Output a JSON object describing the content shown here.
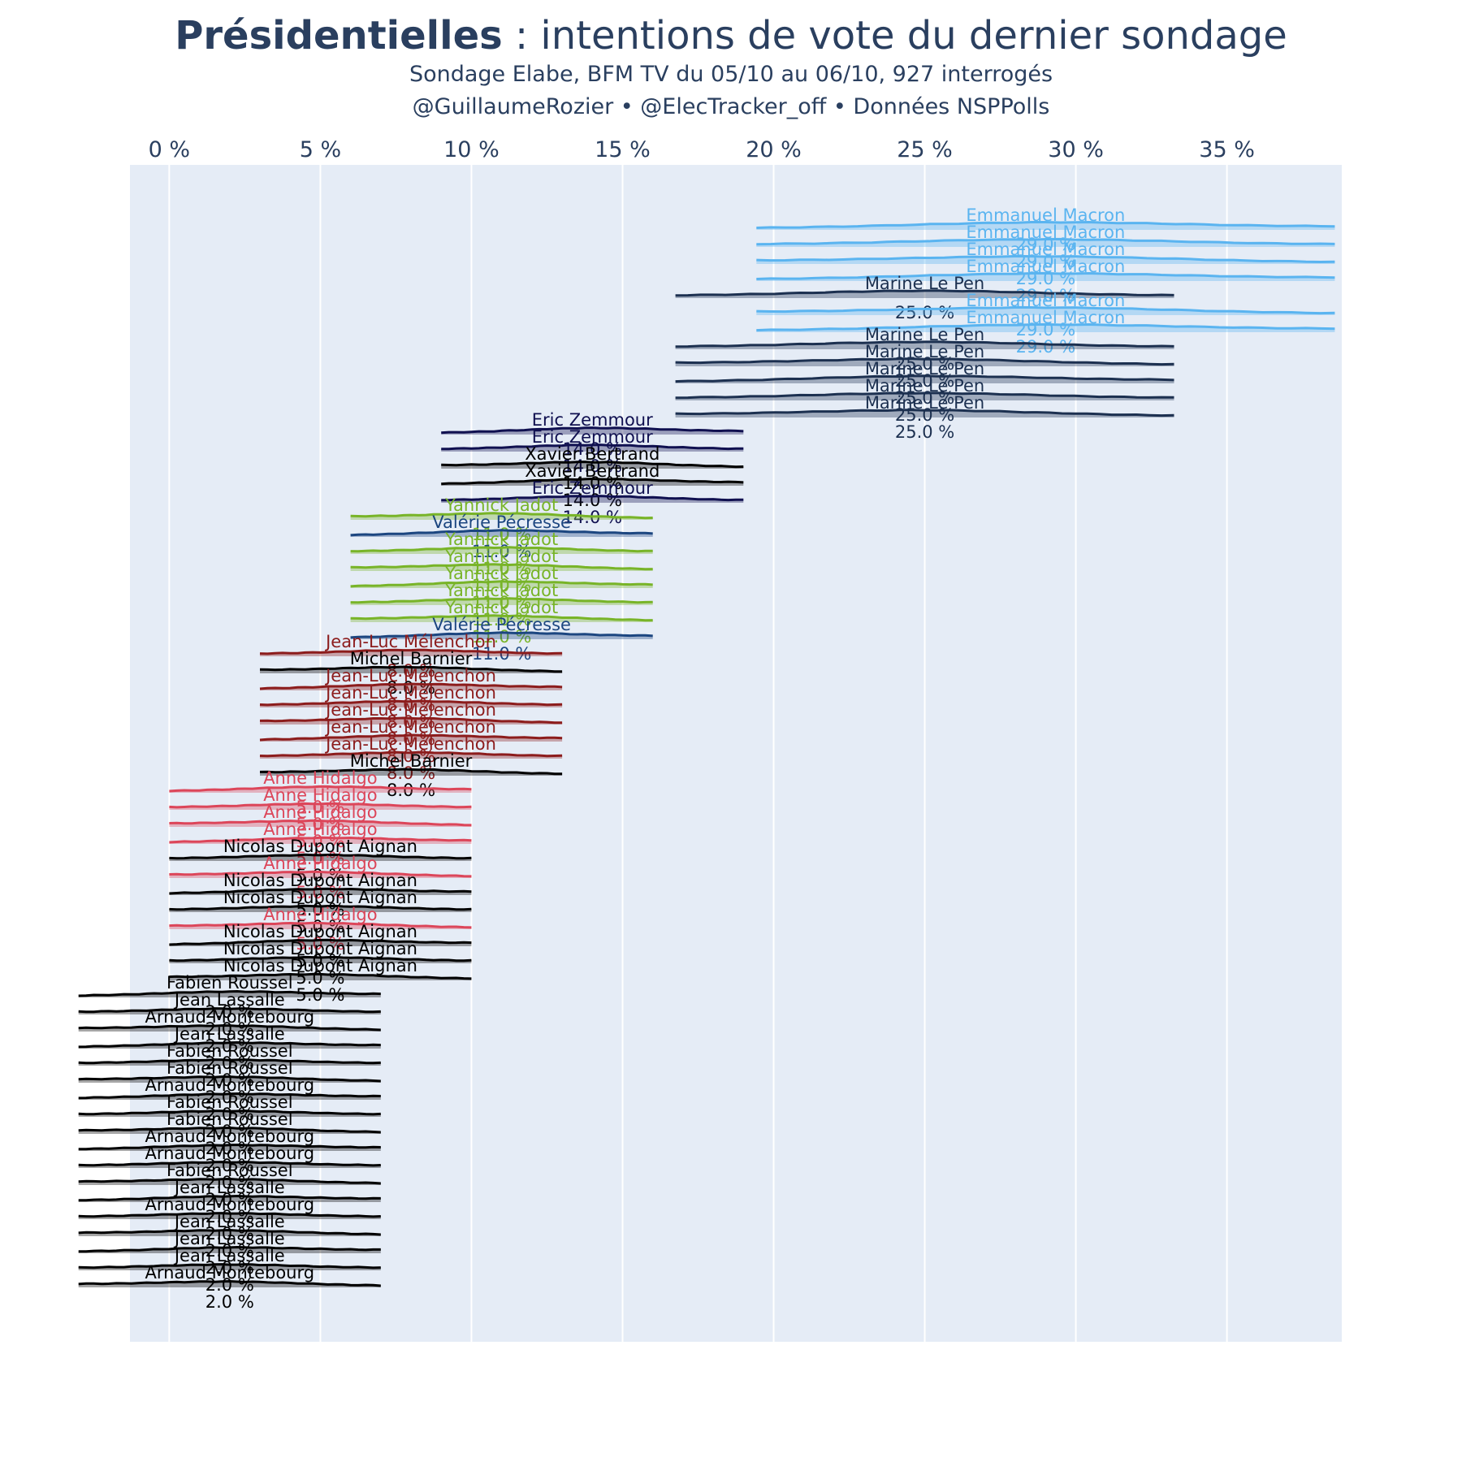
{
  "chart_data": {
    "type": "ridgeline",
    "title_bold": "Présidentielles",
    "title_rest": " : intentions de vote du dernier sondage",
    "subtitle": "Sondage Elabe, BFM TV du 05/10 au 06/10, 927 interrogés",
    "credits": "@GuillaumeRozier • @ElecTracker_off • Données NSPPolls",
    "x_ticks": [
      0,
      5,
      10,
      15,
      20,
      25,
      30,
      35
    ],
    "x_tick_suffix": " %",
    "x_range": [
      -1.3,
      38.8
    ],
    "grid": true,
    "legend": "none",
    "colors": {
      "plot_bg": "#e5ecf6",
      "grid": "#ffffff",
      "text": "#2a3f5f"
    },
    "candidate_colors": {
      "Emmanuel Macron": "#5ab4f0",
      "Marine Le Pen": "#1c3050",
      "Eric Zemmour": "#101050",
      "Xavier Bertrand": "#000000",
      "Yannick Jadot": "#78b428",
      "Valérie Pécresse": "#1c4680",
      "Jean-Luc Mélenchon": "#8c1c1c",
      "Michel Barnier": "#000000",
      "Anne Hidalgo": "#dc465a",
      "Nicolas Dupont Aignan": "#000000",
      "Fabien Roussel": "#000000",
      "Jean Lassalle": "#000000",
      "Arnaud Montebourg": "#000000"
    },
    "series": [
      {
        "name": "Emmanuel Macron",
        "value": 29.0,
        "label": "29.0 %"
      },
      {
        "name": "Emmanuel Macron",
        "value": 29.0,
        "label": "29.0 %"
      },
      {
        "name": "Emmanuel Macron",
        "value": 29.0,
        "label": "29.0 %"
      },
      {
        "name": "Emmanuel Macron",
        "value": 29.0,
        "label": "29.0 %"
      },
      {
        "name": "Marine Le Pen",
        "value": 25.0,
        "label": "25.0 %"
      },
      {
        "name": "Emmanuel Macron",
        "value": 29.0,
        "label": "29.0 %"
      },
      {
        "name": "Emmanuel Macron",
        "value": 29.0,
        "label": "29.0 %"
      },
      {
        "name": "Marine Le Pen",
        "value": 25.0,
        "label": "25.0 %"
      },
      {
        "name": "Marine Le Pen",
        "value": 25.0,
        "label": "25.0 %"
      },
      {
        "name": "Marine Le Pen",
        "value": 25.0,
        "label": "25.0 %"
      },
      {
        "name": "Marine Le Pen",
        "value": 25.0,
        "label": "25.0 %"
      },
      {
        "name": "Marine Le Pen",
        "value": 25.0,
        "label": "25.0 %"
      },
      {
        "name": "Eric Zemmour",
        "value": 14.0,
        "label": "14.0 %"
      },
      {
        "name": "Eric Zemmour",
        "value": 14.0,
        "label": "14.0 %"
      },
      {
        "name": "Xavier Bertrand",
        "value": 14.0,
        "label": "14.0 %"
      },
      {
        "name": "Xavier Bertrand",
        "value": 14.0,
        "label": "14.0 %"
      },
      {
        "name": "Eric Zemmour",
        "value": 14.0,
        "label": "14.0 %"
      },
      {
        "name": "Yannick Jadot",
        "value": 11.0,
        "label": "11.0 %"
      },
      {
        "name": "Valérie Pécresse",
        "value": 11.0,
        "label": "11.0 %"
      },
      {
        "name": "Yannick Jadot",
        "value": 11.0,
        "label": "11.0 %"
      },
      {
        "name": "Yannick Jadot",
        "value": 11.0,
        "label": "11.0 %"
      },
      {
        "name": "Yannick Jadot",
        "value": 11.0,
        "label": "11.0 %"
      },
      {
        "name": "Yannick Jadot",
        "value": 11.0,
        "label": "11.0 %"
      },
      {
        "name": "Yannick Jadot",
        "value": 11.0,
        "label": "11.0 %"
      },
      {
        "name": "Valérie Pécresse",
        "value": 11.0,
        "label": "11.0 %"
      },
      {
        "name": "Jean-Luc Mélenchon",
        "value": 8.0,
        "label": "8.0 %"
      },
      {
        "name": "Michel Barnier",
        "value": 8.0,
        "label": "8.0 %"
      },
      {
        "name": "Jean-Luc Mélenchon",
        "value": 8.0,
        "label": "8.0 %"
      },
      {
        "name": "Jean-Luc Mélenchon",
        "value": 8.0,
        "label": "8.0 %"
      },
      {
        "name": "Jean-Luc Mélenchon",
        "value": 8.0,
        "label": "8.0 %"
      },
      {
        "name": "Jean-Luc Mélenchon",
        "value": 8.0,
        "label": "8.0 %"
      },
      {
        "name": "Jean-Luc Mélenchon",
        "value": 8.0,
        "label": "8.0 %"
      },
      {
        "name": "Michel Barnier",
        "value": 8.0,
        "label": "8.0 %"
      },
      {
        "name": "Anne Hidalgo",
        "value": 5.0,
        "label": "5.0 %"
      },
      {
        "name": "Anne Hidalgo",
        "value": 5.0,
        "label": "5.0 %"
      },
      {
        "name": "Anne Hidalgo",
        "value": 5.0,
        "label": "5.0 %"
      },
      {
        "name": "Anne Hidalgo",
        "value": 5.0,
        "label": "5.0 %"
      },
      {
        "name": "Nicolas Dupont Aignan",
        "value": 5.0,
        "label": "5.0 %"
      },
      {
        "name": "Anne Hidalgo",
        "value": 5.0,
        "label": "5.0 %"
      },
      {
        "name": "Nicolas Dupont Aignan",
        "value": 5.0,
        "label": "5.0 %"
      },
      {
        "name": "Nicolas Dupont Aignan",
        "value": 5.0,
        "label": "5.0 %"
      },
      {
        "name": "Anne Hidalgo",
        "value": 5.0,
        "label": "5.0 %"
      },
      {
        "name": "Nicolas Dupont Aignan",
        "value": 5.0,
        "label": "5.0 %"
      },
      {
        "name": "Nicolas Dupont Aignan",
        "value": 5.0,
        "label": "5.0 %"
      },
      {
        "name": "Nicolas Dupont Aignan",
        "value": 5.0,
        "label": "5.0 %"
      },
      {
        "name": "Fabien Roussel",
        "value": 2.0,
        "label": "2.0 %"
      },
      {
        "name": "Jean Lassalle",
        "value": 2.0,
        "label": "2.0 %"
      },
      {
        "name": "Arnaud Montebourg",
        "value": 2.0,
        "label": "2.0 %"
      },
      {
        "name": "Jean Lassalle",
        "value": 2.0,
        "label": "2.0 %"
      },
      {
        "name": "Fabien Roussel",
        "value": 2.0,
        "label": "2.0 %"
      },
      {
        "name": "Fabien Roussel",
        "value": 2.0,
        "label": "2.0 %"
      },
      {
        "name": "Arnaud Montebourg",
        "value": 2.0,
        "label": "2.0 %"
      },
      {
        "name": "Fabien Roussel",
        "value": 2.0,
        "label": "2.0 %"
      },
      {
        "name": "Fabien Roussel",
        "value": 2.0,
        "label": "2.0 %"
      },
      {
        "name": "Arnaud Montebourg",
        "value": 2.0,
        "label": "2.0 %"
      },
      {
        "name": "Arnaud Montebourg",
        "value": 2.0,
        "label": "2.0 %"
      },
      {
        "name": "Fabien Roussel",
        "value": 2.0,
        "label": "2.0 %"
      },
      {
        "name": "Jean Lassalle",
        "value": 2.0,
        "label": "2.0 %"
      },
      {
        "name": "Arnaud Montebourg",
        "value": 2.0,
        "label": "2.0 %"
      },
      {
        "name": "Jean Lassalle",
        "value": 2.0,
        "label": "2.0 %"
      },
      {
        "name": "Jean Lassalle",
        "value": 2.0,
        "label": "2.0 %"
      },
      {
        "name": "Jean Lassalle",
        "value": 2.0,
        "label": "2.0 %"
      },
      {
        "name": "Arnaud Montebourg",
        "value": 2.0,
        "label": "2.0 %"
      }
    ]
  }
}
